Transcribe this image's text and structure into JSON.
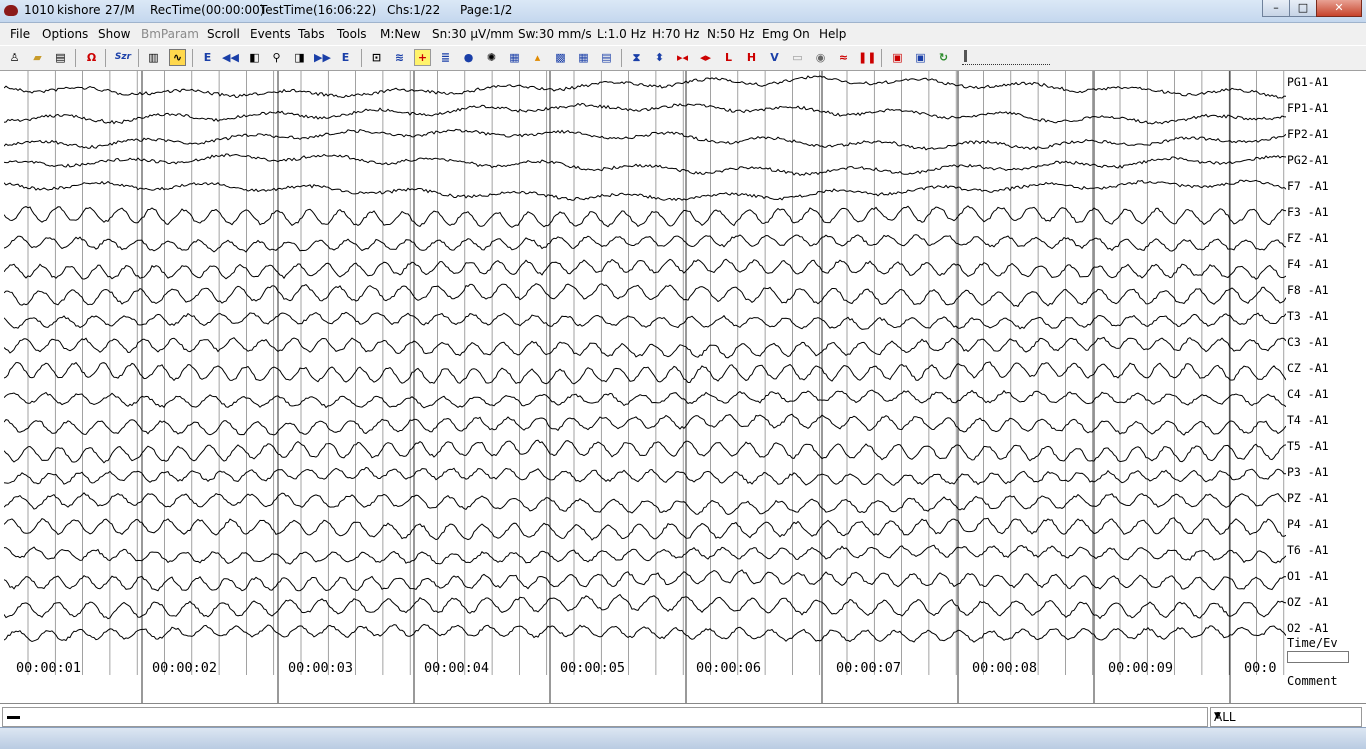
{
  "title": {
    "patient_id": "1010",
    "patient_name": "kishore",
    "age_sex": "27/M",
    "rec_time": "RecTime(00:00:00)",
    "test_time": "TestTime(16:06:22)",
    "channels": "Chs:1/22",
    "page": "Page:1/2"
  },
  "menu": {
    "file": "File",
    "options": "Options",
    "show": "Show",
    "bmparam": "BmParam",
    "scroll": "Scroll",
    "events": "Events",
    "tabs": "Tabs",
    "tools": "Tools",
    "montage": "M:New",
    "sensitivity": "Sn:30 µV/mm",
    "sweep": "Sw:30 mm/s",
    "low_filter": "L:1.0 Hz",
    "high_filter": "H:70 Hz",
    "notch_filter": "N:50 Hz",
    "emg": "Emg On",
    "help": "Help"
  },
  "toolbar": {
    "omega_symbol": "Ω",
    "sz_label": "Szr",
    "event_label": "E"
  },
  "channels": [
    "PG1-A1",
    "FP1-A1",
    "FP2-A1",
    "PG2-A1",
    "F7 -A1",
    "F3 -A1",
    "FZ -A1",
    "F4 -A1",
    "F8 -A1",
    "T3 -A1",
    "C3 -A1",
    "CZ -A1",
    "C4 -A1",
    "T4 -A1",
    "T5 -A1",
    "P3 -A1",
    "PZ -A1",
    "P4 -A1",
    "T6 -A1",
    "O1 -A1",
    "OZ -A1",
    "O2 -A1"
  ],
  "time_labels": [
    "00:00:01",
    "00:00:02",
    "00:00:03",
    "00:00:04",
    "00:00:05",
    "00:00:06",
    "00:00:07",
    "00:00:08",
    "00:00:09",
    "00:0"
  ],
  "side": {
    "time_ev": "Time/Ev",
    "comment": "Comment"
  },
  "bottom": {
    "filter_value": "ALL"
  },
  "colors": {
    "trace": "#000000",
    "grid": "#7a7a7a",
    "titlebar": "#c4d7ee"
  }
}
